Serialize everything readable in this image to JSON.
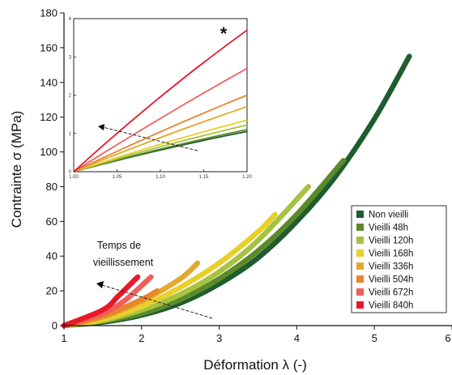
{
  "chart_data": {
    "type": "line",
    "title": "",
    "xlabel": "Déformation λ (-)",
    "ylabel": "Contrainte σ (MPa)",
    "xlim": [
      1,
      6
    ],
    "ylim": [
      0,
      180
    ],
    "x_ticks": [
      "1",
      "2",
      "3",
      "4",
      "5",
      "6"
    ],
    "y_ticks": [
      "0",
      "20",
      "40",
      "60",
      "80",
      "100",
      "120",
      "140",
      "160",
      "180"
    ],
    "grid": false,
    "legend_position": "right",
    "annotation": [
      "Temps de",
      "vieillissement"
    ],
    "series": [
      {
        "name": "Non vieilli",
        "color": "#1f5c2e",
        "x": [
          1.0,
          1.5,
          2.0,
          2.5,
          3.0,
          3.5,
          4.0,
          4.5,
          5.0,
          5.45
        ],
        "y": [
          0,
          2,
          6,
          13,
          24,
          39,
          60,
          86,
          119,
          155
        ]
      },
      {
        "name": "Vieilli 48h",
        "color": "#5c8a2b",
        "x": [
          1.0,
          1.5,
          2.0,
          2.5,
          3.0,
          3.5,
          4.0,
          4.6
        ],
        "y": [
          0,
          2.5,
          7,
          15,
          27,
          43,
          64,
          95
        ]
      },
      {
        "name": "Vieilli 120h",
        "color": "#a7c241",
        "x": [
          1.0,
          1.5,
          2.0,
          2.5,
          3.0,
          3.5,
          4.15
        ],
        "y": [
          0,
          3,
          9,
          18,
          31,
          49,
          80
        ]
      },
      {
        "name": "Vieilli 168h",
        "color": "#e8cf2a",
        "x": [
          1.0,
          1.5,
          2.0,
          2.5,
          3.0,
          3.5,
          3.72
        ],
        "y": [
          0,
          3.5,
          11,
          22,
          36,
          54,
          64
        ]
      },
      {
        "name": "Vieilli 336h",
        "color": "#e3a92c",
        "x": [
          1.0,
          1.5,
          2.0,
          2.5,
          2.72
        ],
        "y": [
          0,
          5,
          14,
          27,
          36
        ]
      },
      {
        "name": "Vieilli 504h",
        "color": "#e8862b",
        "x": [
          1.0,
          1.5,
          2.0,
          2.2
        ],
        "y": [
          0,
          5.5,
          15,
          20
        ]
      },
      {
        "name": "Vieilli 672h",
        "color": "#f0605a",
        "x": [
          1.0,
          1.5,
          1.8,
          2.12
        ],
        "y": [
          0,
          7,
          15,
          28
        ]
      },
      {
        "name": "Vieilli 840h",
        "color": "#e8182c",
        "x": [
          1.0,
          1.5,
          1.7,
          1.95
        ],
        "y": [
          0,
          9,
          17,
          28
        ]
      }
    ],
    "inset": {
      "xlim": [
        1.0,
        1.2
      ],
      "ylim": [
        0,
        4
      ],
      "x_ticks": [
        "1.00",
        "1.05",
        "1.10",
        "1.15",
        "1.20"
      ],
      "y_ticks": [
        "0",
        "1",
        "2",
        "3",
        "4"
      ],
      "marker": "*",
      "end_values": [
        1.05,
        1.1,
        1.22,
        1.35,
        1.7,
        2.0,
        2.7,
        3.7
      ]
    }
  }
}
